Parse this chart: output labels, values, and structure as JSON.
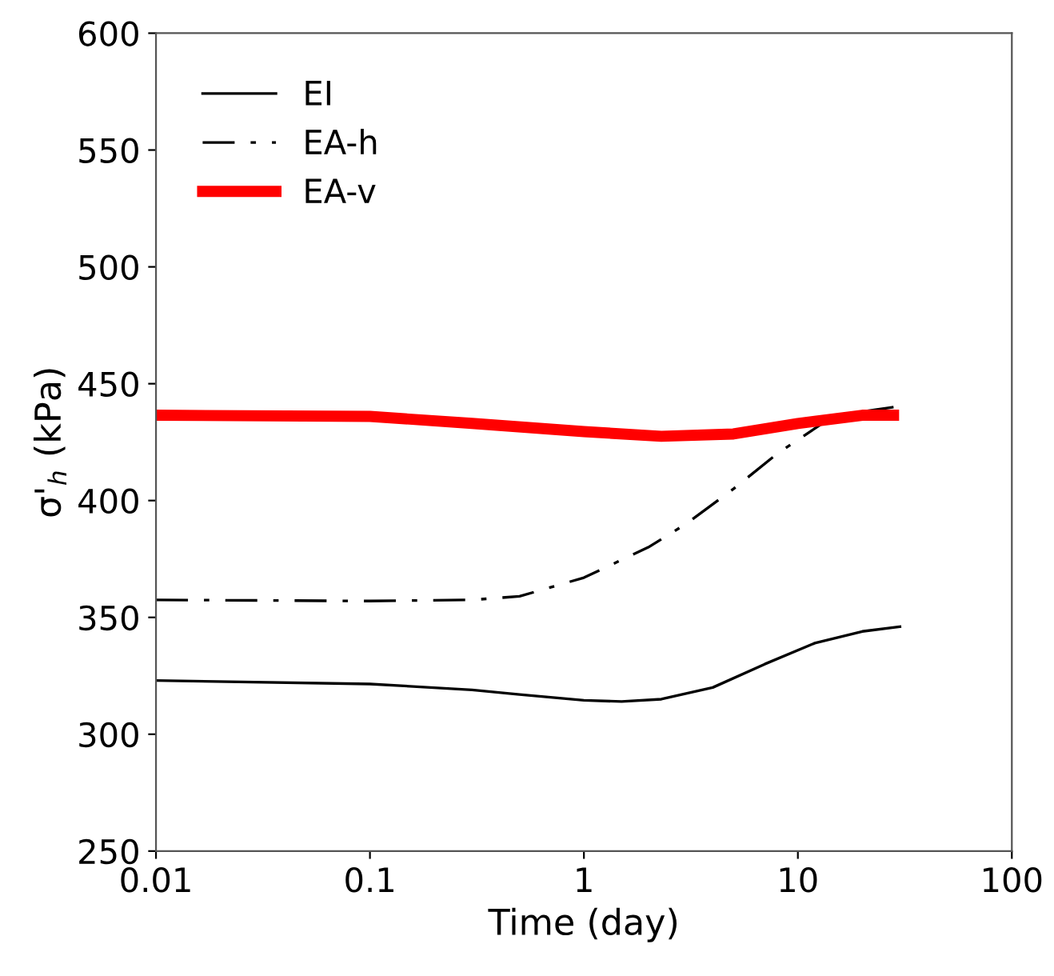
{
  "chart_data": {
    "type": "line",
    "xlabel": "Time (day)",
    "ylabel": "σ'$_{h}$ (kPa)",
    "log": "x",
    "grid": false,
    "legend": "top left",
    "xlim": [
      0.01,
      100
    ],
    "xticks": [
      0.01,
      0.1,
      1,
      10,
      100
    ],
    "ylim": [
      250,
      600
    ],
    "yticks": [
      250,
      300,
      350,
      400,
      450,
      500,
      550,
      600
    ],
    "series": [
      {
        "name": "EI",
        "color": "#000000",
        "line_style": "solid",
        "x": [
          0.01,
          0.1,
          0.3,
          0.5,
          1,
          1.5,
          2.3,
          4,
          7,
          12,
          20,
          30
        ],
        "values": [
          323,
          321.5,
          319,
          317,
          314.5,
          314,
          315,
          320,
          330,
          339,
          344,
          346
        ]
      },
      {
        "name": "EA-h",
        "color": "#000000",
        "line_style": "dashdot",
        "x": [
          0.01,
          0.1,
          0.3,
          0.5,
          1,
          2,
          3,
          5,
          8,
          13,
          20,
          28
        ],
        "values": [
          357.5,
          357,
          357.5,
          359,
          367,
          380,
          390,
          405,
          420,
          433,
          438,
          440
        ]
      },
      {
        "name": "EA-v",
        "color": "#ff0000",
        "line_style": "solid",
        "x": [
          0.01,
          0.1,
          0.3,
          1,
          2.3,
          5,
          10,
          20,
          28
        ],
        "values": [
          436.5,
          436,
          433,
          429.5,
          427.5,
          428.5,
          433,
          436.5,
          436.5
        ]
      }
    ]
  }
}
